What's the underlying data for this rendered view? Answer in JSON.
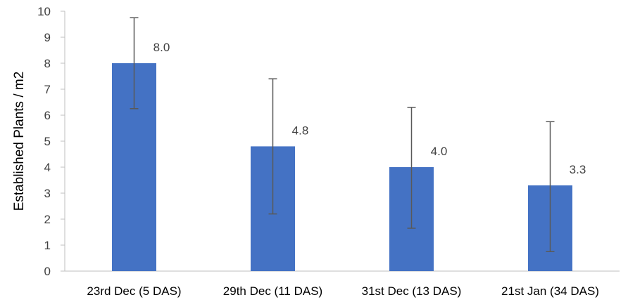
{
  "chart_data": {
    "type": "bar",
    "title": "",
    "xlabel": "",
    "ylabel": "Established Plants / m2",
    "ylim": [
      0,
      10
    ],
    "yticks": [
      0,
      1,
      2,
      3,
      4,
      5,
      6,
      7,
      8,
      9,
      10
    ],
    "grid": false,
    "legend": "none",
    "categories": [
      "23rd Dec (5 DAS)",
      "29th Dec (11 DAS)",
      "31st Dec (13 DAS)",
      "21st Jan (34 DAS)"
    ],
    "values": [
      8.0,
      4.8,
      4.0,
      3.3
    ],
    "value_labels": [
      "8.0",
      "4.8",
      "4.0",
      "3.3"
    ],
    "error_low": [
      6.25,
      2.2,
      1.65,
      0.75
    ],
    "error_high": [
      9.75,
      7.4,
      6.3,
      5.75
    ],
    "bar_color": "#4472C4",
    "error_bar_color": "#595959"
  }
}
